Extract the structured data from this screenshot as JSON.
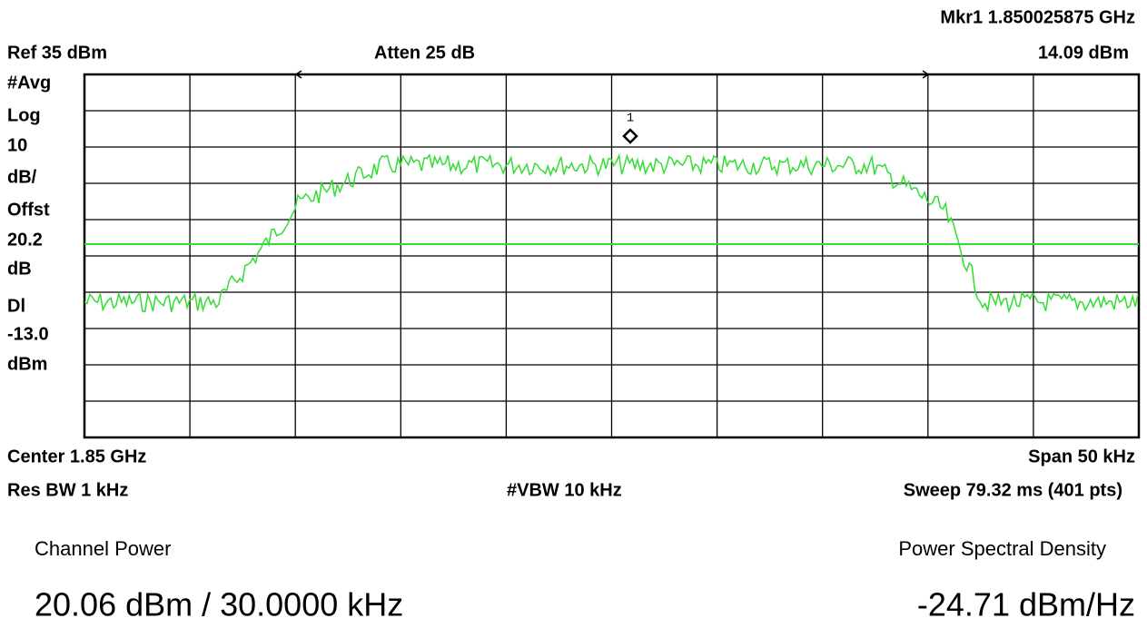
{
  "header": {
    "marker": "Mkr1  1.850025875 GHz",
    "ref": "Ref 35 dBm",
    "atten": "Atten 25 dB",
    "marker_level": "14.09 dBm"
  },
  "side_labels": [
    "#Avg",
    "Log",
    "10",
    "dB/",
    "Offst",
    "20.2",
    "dB",
    "Dl",
    "-13.0",
    "dBm"
  ],
  "marker_number": "1",
  "footer": {
    "center": "Center 1.85 GHz",
    "span": "Span 50 kHz",
    "res_bw": "Res BW 1 kHz",
    "vbw": "#VBW 10 kHz",
    "sweep": "Sweep 79.32 ms (401 pts)"
  },
  "results": {
    "channel_power_label": "Channel Power",
    "channel_power_value": "20.06 dBm / 30.0000 kHz",
    "psd_label": "Power Spectral Density",
    "psd_value": "-24.71 dBm/Hz"
  }
}
